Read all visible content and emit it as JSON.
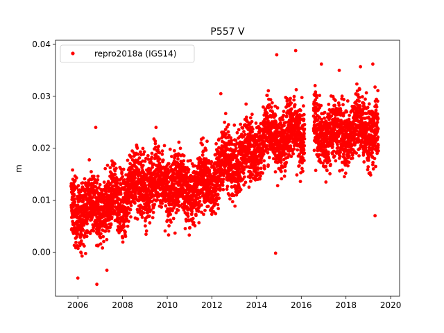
{
  "chart_data": {
    "type": "scatter",
    "title": "P557 V",
    "xlabel": "",
    "ylabel": "m",
    "xlim": [
      2005.0,
      2020.4
    ],
    "ylim": [
      -0.0085,
      0.0408
    ],
    "xticks": [
      2006,
      2008,
      2010,
      2012,
      2014,
      2016,
      2018,
      2020
    ],
    "yticks": [
      0.0,
      0.01,
      0.02,
      0.03,
      0.04
    ],
    "ytick_labels": [
      "0.00",
      "0.01",
      "0.02",
      "0.03",
      "0.04"
    ],
    "grid": false,
    "legend": {
      "location": "upper-left"
    },
    "series": [
      {
        "name": "repro2018a (IGS14)",
        "color": "#ff0000",
        "marker": "circle",
        "x_range": [
          2005.7,
          2019.45
        ],
        "trend": [
          {
            "x": 2005.8,
            "y": 0.0085
          },
          {
            "x": 2006.5,
            "y": 0.008
          },
          {
            "x": 2007.5,
            "y": 0.009
          },
          {
            "x": 2008.5,
            "y": 0.0125
          },
          {
            "x": 2009.5,
            "y": 0.0135
          },
          {
            "x": 2010.5,
            "y": 0.0125
          },
          {
            "x": 2011.5,
            "y": 0.0125
          },
          {
            "x": 2012.5,
            "y": 0.0165
          },
          {
            "x": 2013.5,
            "y": 0.0185
          },
          {
            "x": 2014.5,
            "y": 0.0225
          },
          {
            "x": 2015.5,
            "y": 0.0225
          },
          {
            "x": 2016.0,
            "y": 0.023
          },
          {
            "x": 2016.5,
            "y": 0.024
          },
          {
            "x": 2017.5,
            "y": 0.0225
          },
          {
            "x": 2018.5,
            "y": 0.024
          },
          {
            "x": 2019.4,
            "y": 0.023
          }
        ],
        "gaps": [
          [
            2016.15,
            2016.55
          ]
        ],
        "notable_points": [
          {
            "x": 2006.0,
            "y": -0.005
          },
          {
            "x": 2006.85,
            "y": -0.0062
          },
          {
            "x": 2007.3,
            "y": -0.0035
          },
          {
            "x": 2006.8,
            "y": 0.024
          },
          {
            "x": 2009.5,
            "y": 0.024
          },
          {
            "x": 2014.85,
            "y": -0.0002
          },
          {
            "x": 2014.9,
            "y": 0.038
          },
          {
            "x": 2015.75,
            "y": 0.0388
          },
          {
            "x": 2016.9,
            "y": 0.0362
          },
          {
            "x": 2018.65,
            "y": 0.0357
          },
          {
            "x": 2019.2,
            "y": 0.0362
          },
          {
            "x": 2019.3,
            "y": 0.007
          },
          {
            "x": 2017.7,
            "y": 0.035
          },
          {
            "x": 2012.4,
            "y": 0.0305
          }
        ]
      }
    ]
  }
}
